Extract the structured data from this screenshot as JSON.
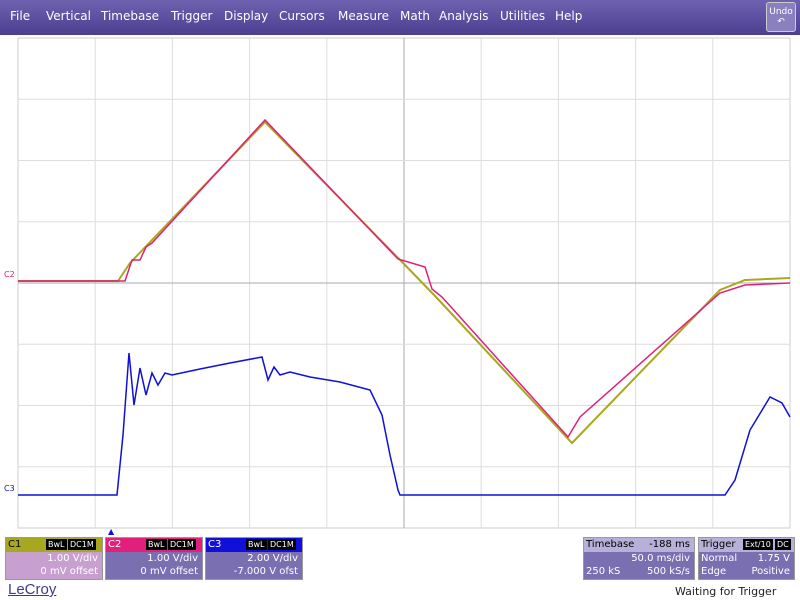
{
  "menu": [
    "File",
    "Vertical",
    "Timebase",
    "Trigger",
    "Display",
    "Cursors",
    "Measure",
    "Math",
    "Analysis",
    "Utilities",
    "Help"
  ],
  "undo": "Undo",
  "markers": [
    "C2",
    "C3"
  ],
  "channels": [
    {
      "name": "C1",
      "bwl": "BwL",
      "coupling": "DC1M",
      "scale": "1.00 V/div",
      "offset": "0 mV offset"
    },
    {
      "name": "C2",
      "bwl": "BwL",
      "coupling": "DC1M",
      "scale": "1.00 V/div",
      "offset": "0 mV offset"
    },
    {
      "name": "C3",
      "bwl": "BwL",
      "coupling": "DC1M",
      "scale": "2.00 V/div",
      "offset": "-7.000 V ofst"
    }
  ],
  "timebase": {
    "title": "Timebase",
    "delay": "-188 ms",
    "scale": "50.0 ms/div",
    "samples": "250 kS",
    "rate": "500 kS/s"
  },
  "trigger": {
    "title": "Trigger",
    "source": "Ext/10",
    "coupling": "DC",
    "mode": "Normal",
    "level": "1.75 V",
    "type": "Edge",
    "slope": "Positive"
  },
  "brand": "LeCroy",
  "status": "Waiting for Trigger"
}
